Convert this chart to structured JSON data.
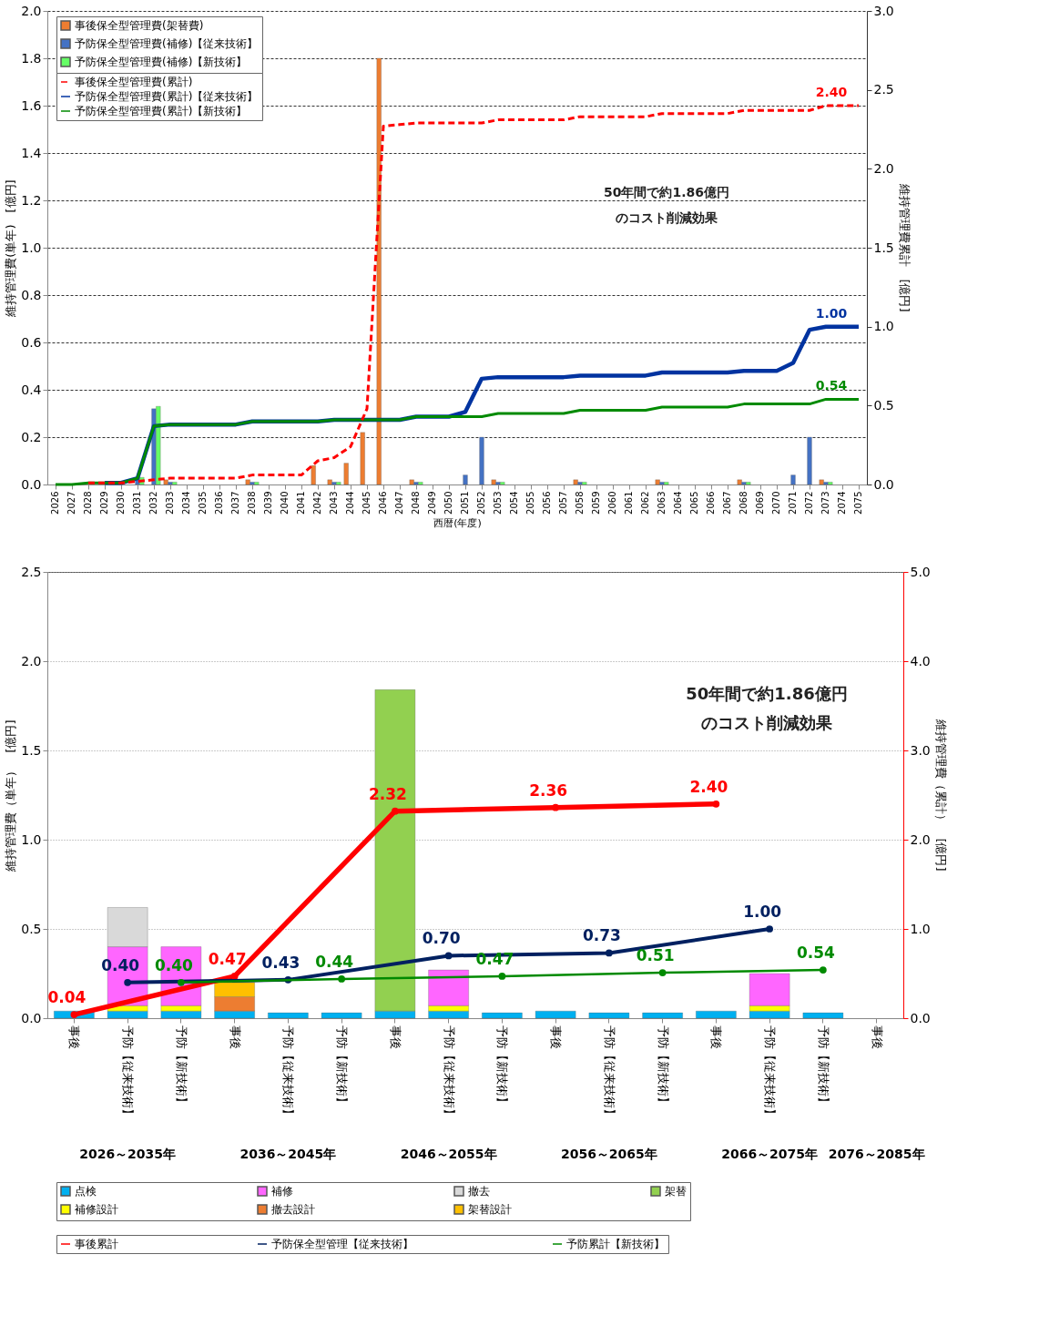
{
  "chart_data": [
    {
      "type": "bar",
      "xlabel": "西暦(年度)",
      "ylabel": "維持管理費(単年)　[億円]",
      "y2label": "維持管理費累計　[億円]",
      "categories": [
        "2026",
        "2027",
        "2028",
        "2029",
        "2030",
        "2031",
        "2032",
        "2033",
        "2034",
        "2035",
        "2036",
        "2037",
        "2038",
        "2039",
        "2040",
        "2041",
        "2042",
        "2043",
        "2044",
        "2045",
        "2046",
        "2047",
        "2048",
        "2049",
        "2050",
        "2051",
        "2052",
        "2053",
        "2054",
        "2055",
        "2056",
        "2057",
        "2058",
        "2059",
        "2060",
        "2061",
        "2062",
        "2063",
        "2064",
        "2065",
        "2066",
        "2067",
        "2068",
        "2069",
        "2070",
        "2071",
        "2072",
        "2073",
        "2074",
        "2075"
      ],
      "ylim": [
        0,
        2.0
      ],
      "yticks": [
        {
          "value": 0,
          "label": "0.0"
        },
        0.2,
        0.4,
        0.6,
        0.8,
        {
          "value": 1,
          "label": "1.0"
        },
        1.2,
        1.4,
        1.6,
        1.8,
        {
          "value": 2,
          "label": "2.0"
        }
      ],
      "y2lim": [
        0,
        3.0
      ],
      "y2ticks": [
        {
          "value": 0,
          "label": "0.0"
        },
        0.5,
        {
          "value": 1,
          "label": "1.0"
        },
        1.5,
        {
          "value": 2,
          "label": "2.0"
        },
        2.5,
        {
          "value": 3,
          "label": "3.0"
        }
      ],
      "grid": "y",
      "legend": "top left",
      "annotations": [
        "50年間で約1.86億円のコスト削減効果"
      ],
      "series": [
        {
          "name": "事後保全型管理費(架替費)",
          "color": "#ed7d31",
          "values": [
            null,
            null,
            null,
            null,
            null,
            null,
            null,
            0.02,
            null,
            null,
            null,
            null,
            0.02,
            null,
            null,
            null,
            0.08,
            0.02,
            0.09,
            0.22,
            1.8,
            null,
            0.02,
            null,
            null,
            null,
            null,
            0.02,
            null,
            null,
            null,
            null,
            0.02,
            null,
            null,
            null,
            null,
            0.02,
            null,
            null,
            null,
            null,
            0.02,
            null,
            null,
            null,
            null,
            0.02,
            null,
            null
          ]
        },
        {
          "name": "予防保全型管理費(補修)【従来技術】",
          "color": "#4472c4",
          "values": [
            null,
            null,
            null,
            null,
            null,
            0.03,
            0.32,
            0.01,
            null,
            null,
            null,
            null,
            0.01,
            null,
            null,
            null,
            null,
            0.01,
            null,
            null,
            null,
            null,
            0.01,
            null,
            null,
            0.04,
            0.2,
            0.01,
            null,
            null,
            null,
            null,
            0.01,
            null,
            null,
            null,
            null,
            0.01,
            null,
            null,
            null,
            null,
            0.01,
            null,
            null,
            0.04,
            0.2,
            0.01,
            null,
            null
          ]
        },
        {
          "name": "予防保全型管理費(補修)【新技術】",
          "color": "#66ff66",
          "values": [
            null,
            null,
            null,
            null,
            null,
            0.03,
            0.33,
            0.01,
            null,
            null,
            null,
            null,
            0.01,
            null,
            null,
            null,
            null,
            0.01,
            null,
            null,
            null,
            null,
            0.01,
            null,
            null,
            null,
            null,
            0.01,
            null,
            null,
            null,
            null,
            0.01,
            null,
            null,
            null,
            null,
            0.01,
            null,
            null,
            null,
            null,
            0.01,
            null,
            null,
            null,
            null,
            0.01,
            null,
            null
          ]
        },
        {
          "name": "事後保全型管理費(累計)",
          "type": "line",
          "axis": "y2",
          "line_style": "dashed",
          "color": "#ff0000",
          "values": [
            null,
            null,
            0.01,
            0.01,
            0.01,
            0.02,
            0.03,
            0.04,
            0.04,
            0.04,
            0.04,
            0.04,
            0.06,
            0.06,
            0.06,
            0.06,
            0.15,
            0.17,
            0.24,
            0.48,
            2.27,
            2.28,
            2.29,
            2.29,
            2.29,
            2.29,
            2.29,
            2.31,
            2.31,
            2.31,
            2.31,
            2.31,
            2.33,
            2.33,
            2.33,
            2.33,
            2.33,
            2.35,
            2.35,
            2.35,
            2.35,
            2.35,
            2.37,
            2.37,
            2.37,
            2.37,
            2.37,
            2.4,
            2.4,
            2.4
          ],
          "value_labels": [
            null,
            null,
            null,
            null,
            null,
            null,
            null,
            null,
            null,
            null,
            null,
            null,
            null,
            null,
            null,
            null,
            null,
            null,
            null,
            null,
            null,
            null,
            null,
            null,
            null,
            null,
            null,
            null,
            null,
            null,
            null,
            null,
            null,
            null,
            null,
            null,
            null,
            null,
            null,
            null,
            null,
            null,
            null,
            null,
            null,
            null,
            null,
            null,
            null,
            "2.40"
          ]
        },
        {
          "name": "予防保全型管理費(累計)【従来技術】",
          "type": "line",
          "axis": "y2",
          "line_style": "solid",
          "color": "#0033a0",
          "values": [
            null,
            null,
            null,
            0.01,
            0.01,
            0.04,
            0.37,
            0.38,
            0.38,
            0.38,
            0.38,
            0.38,
            0.4,
            0.4,
            0.4,
            0.4,
            0.4,
            0.41,
            0.41,
            0.41,
            0.41,
            0.41,
            0.43,
            0.43,
            0.43,
            0.46,
            0.67,
            0.68,
            0.68,
            0.68,
            0.68,
            0.68,
            0.69,
            0.69,
            0.69,
            0.69,
            0.69,
            0.71,
            0.71,
            0.71,
            0.71,
            0.71,
            0.72,
            0.72,
            0.72,
            0.77,
            0.98,
            1.0,
            1.0,
            1.0
          ],
          "value_labels": [
            null,
            null,
            null,
            null,
            null,
            null,
            null,
            null,
            null,
            null,
            null,
            null,
            null,
            null,
            null,
            null,
            null,
            null,
            null,
            null,
            null,
            null,
            null,
            null,
            null,
            null,
            null,
            null,
            null,
            null,
            null,
            null,
            null,
            null,
            null,
            null,
            null,
            null,
            null,
            null,
            null,
            null,
            null,
            null,
            null,
            null,
            null,
            null,
            null,
            "1.00"
          ]
        },
        {
          "name": "予防保全型管理費(累計)【新技術】",
          "type": "line",
          "axis": "y2",
          "line_style": "solid",
          "color": "#008a00",
          "values": [
            0,
            0,
            0.01,
            0.01,
            0.01,
            0.04,
            0.37,
            0.38,
            0.38,
            0.38,
            0.38,
            0.38,
            0.4,
            0.4,
            0.4,
            0.4,
            0.4,
            0.41,
            0.41,
            0.41,
            0.41,
            0.41,
            0.43,
            0.43,
            0.43,
            0.43,
            0.43,
            0.45,
            0.45,
            0.45,
            0.45,
            0.45,
            0.47,
            0.47,
            0.47,
            0.47,
            0.47,
            0.49,
            0.49,
            0.49,
            0.49,
            0.49,
            0.51,
            0.51,
            0.51,
            0.51,
            0.51,
            0.54,
            0.54,
            0.54
          ],
          "value_labels": [
            null,
            null,
            null,
            null,
            null,
            null,
            null,
            null,
            null,
            null,
            null,
            null,
            null,
            null,
            null,
            null,
            null,
            null,
            null,
            null,
            null,
            null,
            null,
            null,
            null,
            null,
            null,
            null,
            null,
            null,
            null,
            null,
            null,
            null,
            null,
            null,
            null,
            null,
            null,
            null,
            null,
            null,
            null,
            null,
            null,
            null,
            null,
            null,
            null,
            "0.54"
          ]
        }
      ]
    },
    {
      "type": "bar",
      "stacked": true,
      "ylabel": "維持管理費（単年）　[億円]",
      "y2label": "維持管理費（累計）　[億円]",
      "categories": [
        "事後",
        "予防【従来技術】",
        "予防【新技術】",
        "事後",
        "予防【従来技術】",
        "予防【新技術】",
        "事後",
        "予防【従来技術】",
        "予防【新技術】",
        "事後",
        "予防【従来技術】",
        "予防【新技術】",
        "事後",
        "予防【従来技術】",
        "予防【新技術】",
        "事後"
      ],
      "ylim": [
        0,
        2.5
      ],
      "yticks": [
        {
          "value": 0,
          "label": "0.0"
        },
        0.5,
        {
          "value": 1,
          "label": "1.0"
        },
        1.5,
        {
          "value": 2,
          "label": "2.0"
        },
        2.5
      ],
      "y2lim": [
        0,
        5.0
      ],
      "y2ticks": [
        {
          "value": 0,
          "label": "0.0"
        },
        {
          "value": 1,
          "label": "1.0"
        },
        {
          "value": 2,
          "label": "2.0"
        },
        {
          "value": 3,
          "label": "3.0"
        },
        {
          "value": 4,
          "label": "4.0"
        },
        {
          "value": 5,
          "label": "5.0"
        }
      ],
      "grid": "y",
      "legend": "bottom",
      "marker": "circle",
      "annotations": [
        "50年間で約1.86億円のコスト削減効果",
        "2026～2035年",
        "2036～2045年",
        "2046～2055年",
        "2056～2065年",
        "2066～2075年",
        "2076～2085年"
      ],
      "series": [
        {
          "name": "点検",
          "color": "#00b0f0",
          "values": [
            0.04,
            0.04,
            0.04,
            0.04,
            0.03,
            0.03,
            0.04,
            0.04,
            0.03,
            0.04,
            0.03,
            0.03,
            0.04,
            0.04,
            0.03,
            null
          ]
        },
        {
          "name": "補修設計",
          "color": "#ffff00",
          "values": [
            null,
            0.03,
            0.03,
            null,
            null,
            null,
            null,
            0.03,
            null,
            null,
            null,
            null,
            null,
            0.03,
            null,
            null
          ]
        },
        {
          "name": "補修",
          "color": "#ff66ff",
          "values": [
            null,
            0.33,
            0.33,
            null,
            null,
            null,
            null,
            0.2,
            null,
            null,
            null,
            null,
            null,
            0.18,
            null,
            null
          ]
        },
        {
          "name": "撤去設計",
          "color": "#ed7d31",
          "values": [
            null,
            null,
            null,
            0.08,
            null,
            null,
            null,
            null,
            null,
            null,
            null,
            null,
            null,
            null,
            null,
            null
          ]
        },
        {
          "name": "撤去",
          "color": "#d9d9d9",
          "values": [
            null,
            0.22,
            null,
            null,
            null,
            null,
            null,
            null,
            null,
            null,
            null,
            null,
            null,
            null,
            null,
            null
          ]
        },
        {
          "name": "架替設計",
          "color": "#ffc000",
          "values": [
            null,
            null,
            null,
            0.08,
            null,
            null,
            null,
            null,
            null,
            null,
            null,
            null,
            null,
            null,
            null,
            null
          ]
        },
        {
          "name": "架替",
          "color": "#92d050",
          "values": [
            null,
            null,
            null,
            null,
            null,
            null,
            1.8,
            null,
            null,
            null,
            null,
            null,
            null,
            null,
            null,
            null
          ]
        },
        {
          "name": "事後累計",
          "type": "line",
          "axis": "y2",
          "line_style": "solid",
          "color": "#ff0000",
          "values": [
            0.04,
            null,
            null,
            0.47,
            null,
            null,
            2.32,
            null,
            null,
            2.36,
            null,
            null,
            2.4,
            null,
            null,
            null
          ],
          "value_labels": [
            "0.04",
            null,
            null,
            "0.47",
            null,
            null,
            "2.32",
            null,
            null,
            "2.36",
            null,
            null,
            "2.40",
            null,
            null,
            null
          ]
        },
        {
          "name": "予防保全型管理【従来技術】",
          "type": "line",
          "axis": "y2",
          "line_style": "solid",
          "color": "#002060",
          "values": [
            null,
            0.4,
            null,
            null,
            0.43,
            null,
            null,
            0.7,
            null,
            null,
            0.73,
            null,
            null,
            1.0,
            null,
            null
          ],
          "value_labels": [
            null,
            "0.40",
            null,
            null,
            "0.43",
            null,
            null,
            "0.70",
            null,
            null,
            "0.73",
            null,
            null,
            "1.00",
            null,
            null
          ]
        },
        {
          "name": "予防累計【新技術】",
          "type": "line",
          "axis": "y2",
          "line_style": "solid",
          "color": "#008a00",
          "values": [
            null,
            null,
            0.4,
            null,
            null,
            0.44,
            null,
            null,
            0.47,
            null,
            null,
            0.51,
            null,
            null,
            0.54,
            null
          ],
          "value_labels": [
            null,
            null,
            "0.40",
            null,
            null,
            "0.44",
            null,
            null,
            "0.47",
            null,
            null,
            "0.51",
            null,
            null,
            "0.54",
            null
          ]
        }
      ]
    }
  ]
}
